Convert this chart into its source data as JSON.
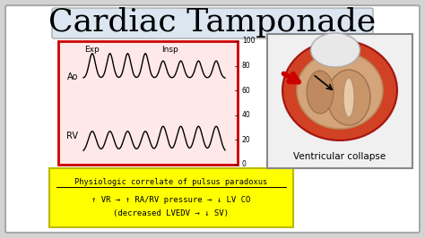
{
  "title": "Cardiac Tamponade",
  "title_fontsize": 26,
  "title_bg_color": "#dce6f1",
  "bg_color": "#d3d3d3",
  "chart_border_color": "#cc0000",
  "ao_label": "Ao",
  "rv_label": "RV",
  "exp_label": "Exp",
  "insp_label": "Insp",
  "yticks": [
    0,
    20,
    40,
    60,
    80,
    100
  ],
  "yellow_box_text_line1": "Physiologic correlate of pulsus paradoxus",
  "yellow_box_text_line2": "↑ VR → ↑ RA/RV pressure → ↓ LV CO",
  "yellow_box_text_line3": "(decreased LVEDV → ↓ SV)",
  "yellow_bg": "#ffff00",
  "heart_label": "Ventricular collapse",
  "white_bg": "#ffffff"
}
